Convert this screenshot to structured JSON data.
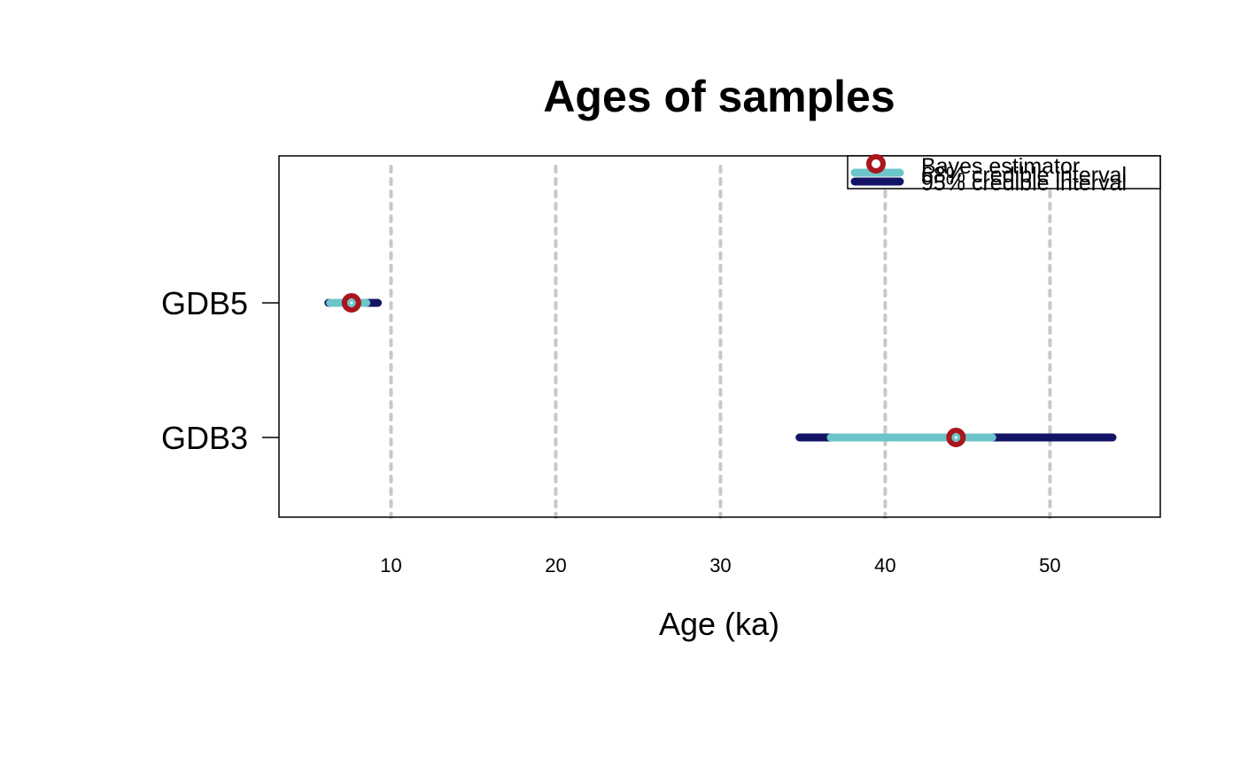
{
  "chart_data": {
    "type": "interval",
    "title": "Ages of samples",
    "xlabel": "Age (ka)",
    "ylabel": "",
    "xlim": [
      3.2,
      56.7
    ],
    "xticks": [
      10,
      20,
      30,
      40,
      50
    ],
    "grid": "vertical dotted at x ticks",
    "legend_position": "top-right",
    "legend": [
      {
        "label": "Bayes estimator",
        "kind": "point"
      },
      {
        "label": "68% credible interval",
        "kind": "line"
      },
      {
        "label": "95% credible interval",
        "kind": "line"
      }
    ],
    "samples": [
      {
        "name": "GDB5",
        "estimate": 7.6,
        "ci68": [
          6.3,
          8.5
        ],
        "ci95": [
          6.2,
          9.2
        ]
      },
      {
        "name": "GDB3",
        "estimate": 44.3,
        "ci68": [
          36.7,
          46.5
        ],
        "ci95": [
          34.8,
          53.8
        ]
      }
    ],
    "colors": {
      "estimator": "#a8161e",
      "ci68": "#6cc5c8",
      "ci95": "#141467",
      "grid": "#c8c8c8"
    }
  }
}
